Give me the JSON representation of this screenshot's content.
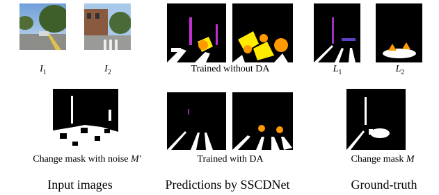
{
  "panels": {
    "input": {
      "caption": "Input images",
      "image_labels": [
        {
          "symbol": "I",
          "subscript": "1"
        },
        {
          "symbol": "I",
          "subscript": "2"
        }
      ],
      "mask_label": {
        "text": "Change mask with noise",
        "symbol": "M′"
      }
    },
    "predictions": {
      "caption": "Predictions by SSCDNet",
      "top_label": "Trained without DA",
      "bottom_label": "Trained with DA"
    },
    "ground_truth": {
      "caption": "Ground-truth",
      "image_labels": [
        {
          "symbol": "L",
          "subscript": "1"
        },
        {
          "symbol": "L",
          "subscript": "2"
        }
      ],
      "mask_label": {
        "text": "Change mask",
        "symbol": "M"
      }
    }
  }
}
